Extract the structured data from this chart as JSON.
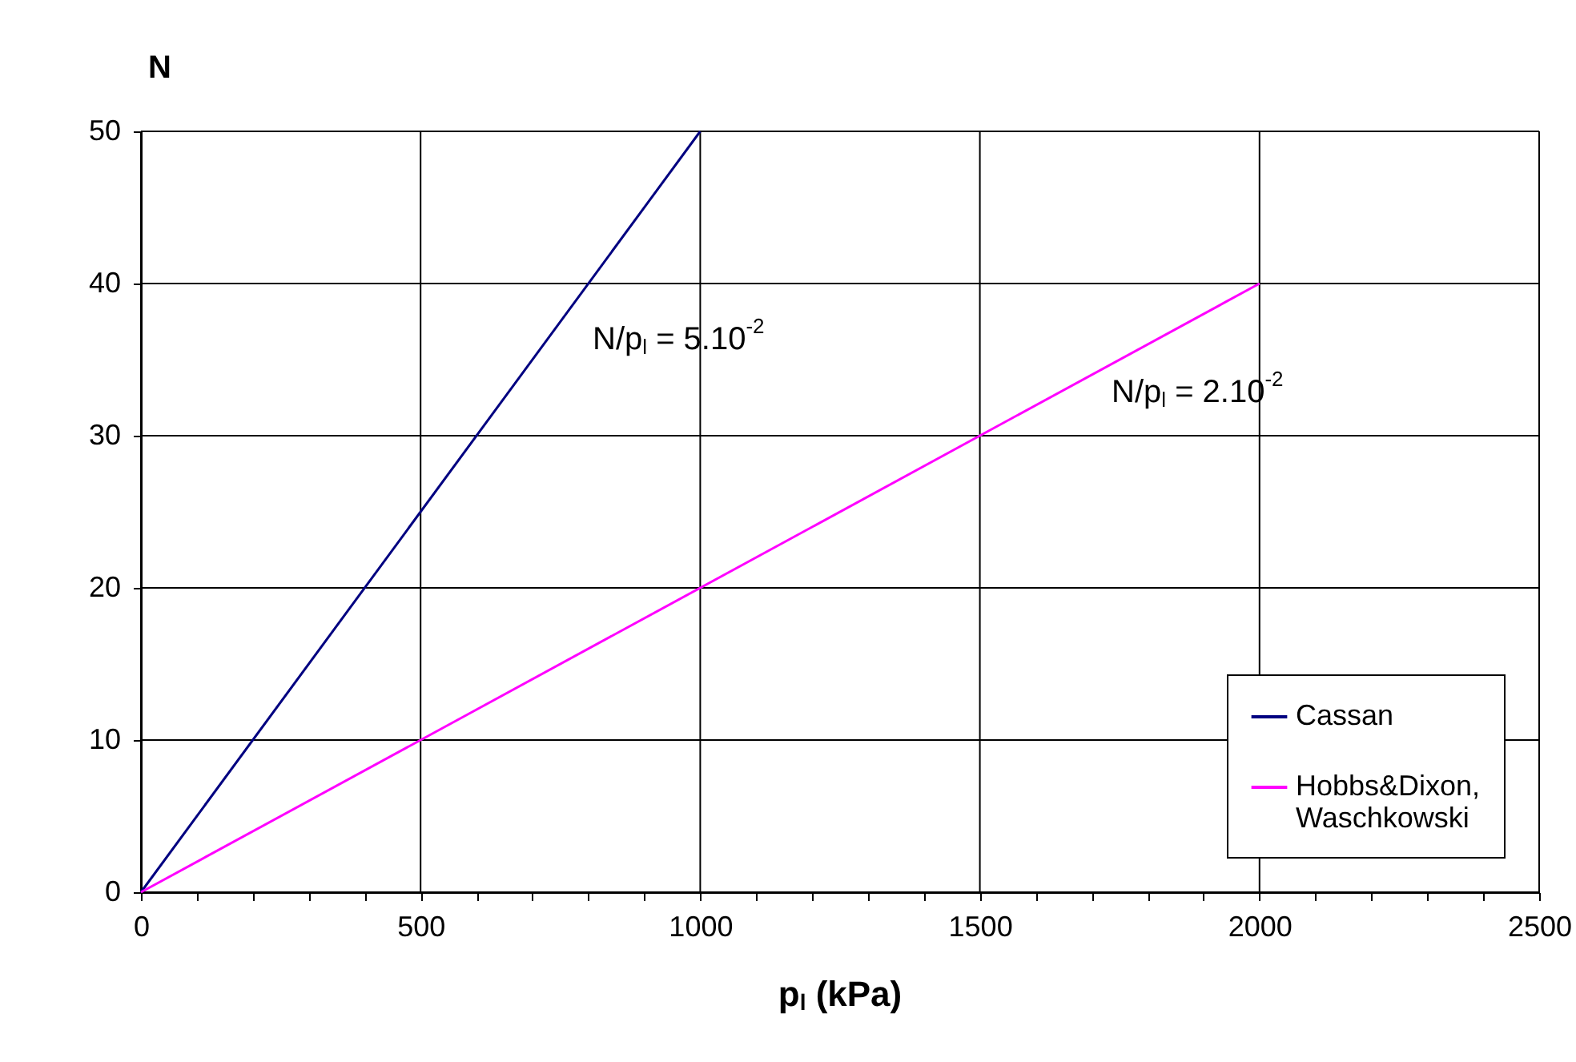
{
  "chart_data": {
    "type": "line",
    "xlabel": "p$_{l}$ (kPa)",
    "ylabel": "N",
    "series": [
      {
        "name": "Cassan",
        "color": "#000080",
        "x": [
          0,
          1000
        ],
        "values": [
          0,
          50
        ]
      },
      {
        "name": "Hobbs&Dixon, Waschkowski",
        "color": "#ff00ff",
        "x": [
          0,
          2000
        ],
        "values": [
          0,
          40
        ]
      }
    ],
    "xlim": [
      0,
      2500
    ],
    "xticks": [
      0,
      {
        "value": 100,
        "label": null
      },
      {
        "value": 200,
        "label": null
      },
      {
        "value": 300,
        "label": null
      },
      {
        "value": 400,
        "label": null
      },
      500,
      {
        "value": 600,
        "label": null
      },
      {
        "value": 700,
        "label": null
      },
      {
        "value": 800,
        "label": null
      },
      {
        "value": 900,
        "label": null
      },
      1000,
      {
        "value": 1100,
        "label": null
      },
      {
        "value": 1200,
        "label": null
      },
      {
        "value": 1300,
        "label": null
      },
      {
        "value": 1400,
        "label": null
      },
      1500,
      {
        "value": 1600,
        "label": null
      },
      {
        "value": 1700,
        "label": null
      },
      {
        "value": 1800,
        "label": null
      },
      {
        "value": 1900,
        "label": null
      },
      2000,
      {
        "value": 2100,
        "label": null
      },
      {
        "value": 2200,
        "label": null
      },
      {
        "value": 2300,
        "label": null
      },
      {
        "value": 2400,
        "label": null
      },
      2500
    ],
    "ylim": [
      0,
      50
    ],
    "yticks": [
      0,
      10,
      20,
      30,
      40,
      50
    ],
    "grid": true,
    "legend": "bottom right",
    "annotations": [
      "N/p$_{l}$ = 5.10$^{-2}$",
      "N/p$_{l}$ = 2.10$^{-2}$"
    ]
  }
}
